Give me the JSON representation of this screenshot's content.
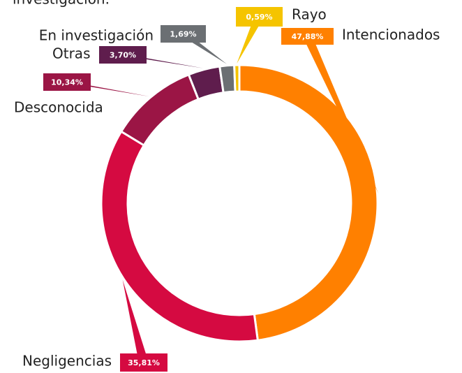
{
  "chart_data": {
    "type": "donut",
    "title": "investigación.",
    "categories": [
      "Intencionados",
      "Negligencias",
      "Desconocida",
      "Otras",
      "En investigación",
      "Rayo"
    ],
    "values": [
      47.88,
      35.81,
      10.34,
      3.7,
      1.69,
      0.59
    ],
    "value_labels": [
      "47,88%",
      "35,81%",
      "10,34%",
      "3,70%",
      "1,69%",
      "0,59%"
    ],
    "colors": [
      "#ff8000",
      "#d50a41",
      "#9b1545",
      "#5f1d4d",
      "#6b6f73",
      "#f5c400"
    ]
  }
}
